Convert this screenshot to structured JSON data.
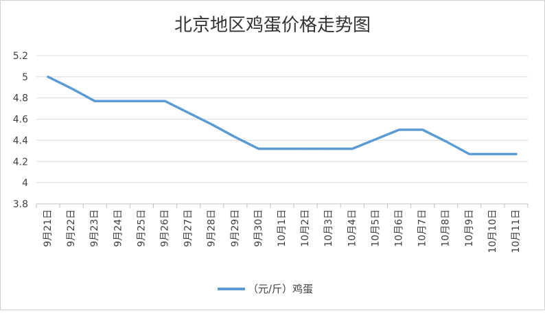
{
  "chart_data": {
    "type": "line",
    "title": "北京地区鸡蛋价格走势图",
    "categories": [
      "9月21日",
      "9月22日",
      "9月23日",
      "9月24日",
      "9月25日",
      "9月26日",
      "9月27日",
      "9月28日",
      "9月29日",
      "9月30日",
      "10月1日",
      "10月2日",
      "10月3日",
      "10月4日",
      "10月5日",
      "10月6日",
      "10月7日",
      "10月8日",
      "10月9日",
      "10月10日",
      "10月11日"
    ],
    "series": [
      {
        "name": "（元/斤）鸡蛋",
        "color": "#5B9BD5",
        "values": [
          5.0,
          4.89,
          4.77,
          4.77,
          4.77,
          4.77,
          4.66,
          4.55,
          4.43,
          4.32,
          4.32,
          4.32,
          4.32,
          4.32,
          4.41,
          4.5,
          4.5,
          4.39,
          4.27,
          4.27,
          4.27
        ]
      }
    ],
    "ylim": [
      3.8,
      5.2
    ],
    "yticks": [
      "3.8",
      "4",
      "4.2",
      "4.4",
      "4.6",
      "4.8",
      "5",
      "5.2"
    ],
    "grid": true,
    "legend_position": "bottom"
  }
}
